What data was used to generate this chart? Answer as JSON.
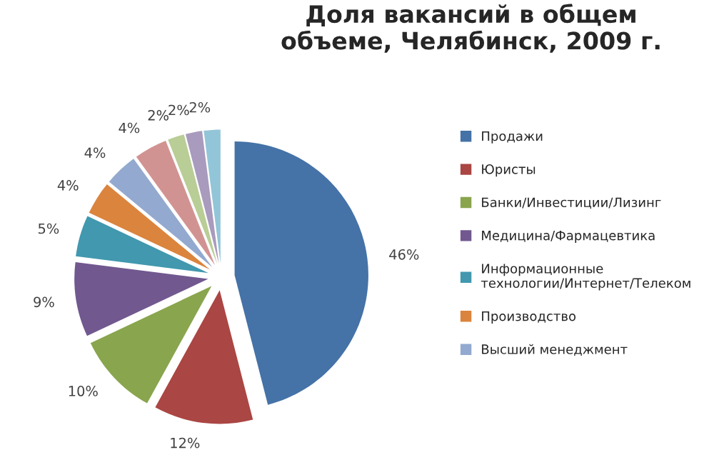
{
  "chart_data": {
    "type": "pie",
    "title": "Доля вакансий в общем\nобъеме, Челябинск, 2009 г.",
    "categories": [
      "Продажи",
      "Юристы",
      "Банки/Инвестиции/Лизинг",
      "Медицина/Фармацевтика",
      "Информационные\nтехнологии/Интернет/Телеком",
      "Производство",
      "Высший менеджмент",
      null,
      null,
      null,
      null
    ],
    "values": [
      46,
      12,
      10,
      9,
      5,
      4,
      4,
      4,
      2,
      2,
      2
    ],
    "value_labels": [
      "46%",
      "12%",
      "10%",
      "9%",
      "5%",
      "4%",
      "4%",
      "4%",
      "2%",
      "2%",
      "2%"
    ],
    "colors": [
      "#4572a7",
      "#aa4643",
      "#89a54e",
      "#71588f",
      "#4198af",
      "#db843d",
      "#93a9cf",
      "#d19392",
      "#b9cd96",
      "#a99bbd",
      "#92c5d8"
    ],
    "legend": "right"
  }
}
